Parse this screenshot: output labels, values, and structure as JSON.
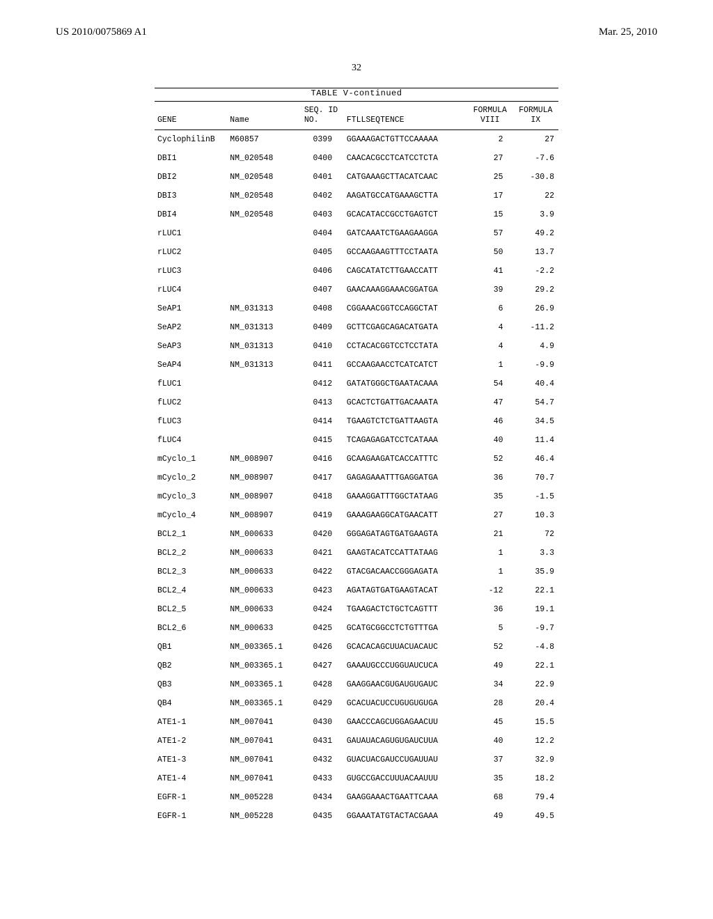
{
  "header": {
    "left": "US 2010/0075869 A1",
    "right": "Mar. 25, 2010"
  },
  "page_number": "32",
  "table": {
    "title": "TABLE V-continued",
    "columns": {
      "gene": "GENE",
      "name": "Name",
      "seqid": "SEQ. ID NO.",
      "seq": "FTLLSEQTENCE",
      "f8_line1": "FORMULA",
      "f8_line2": "VIII",
      "f9_line1": "FORMULA",
      "f9_line2": "IX"
    },
    "rows": [
      {
        "gene": "CyclophilinB",
        "name": "M60857",
        "seqid": "0399",
        "seq": "GGAAAGACTGTTCCAAAAA",
        "f8": "2",
        "f9": "27"
      },
      {
        "gene": "DBI1",
        "name": "NM_020548",
        "seqid": "0400",
        "seq": "CAACACGCCTCATCCTCTA",
        "f8": "27",
        "f9": "-7.6"
      },
      {
        "gene": "DBI2",
        "name": "NM_020548",
        "seqid": "0401",
        "seq": "CATGAAAGCTTACATCAAC",
        "f8": "25",
        "f9": "-30.8"
      },
      {
        "gene": "DBI3",
        "name": "NM_020548",
        "seqid": "0402",
        "seq": "AAGATGCCATGAAAGCTTA",
        "f8": "17",
        "f9": "22"
      },
      {
        "gene": "DBI4",
        "name": "NM_020548",
        "seqid": "0403",
        "seq": "GCACATACCGCCTGAGTCT",
        "f8": "15",
        "f9": "3.9"
      },
      {
        "gene": "rLUC1",
        "name": "",
        "seqid": "0404",
        "seq": "GATCAAATCTGAAGAAGGA",
        "f8": "57",
        "f9": "49.2"
      },
      {
        "gene": "rLUC2",
        "name": "",
        "seqid": "0405",
        "seq": "GCCAAGAAGTTTCCTAATA",
        "f8": "50",
        "f9": "13.7"
      },
      {
        "gene": "rLUC3",
        "name": "",
        "seqid": "0406",
        "seq": "CAGCATATCTTGAACCATT",
        "f8": "41",
        "f9": "-2.2"
      },
      {
        "gene": "rLUC4",
        "name": "",
        "seqid": "0407",
        "seq": "GAACAAAGGAAACGGATGA",
        "f8": "39",
        "f9": "29.2"
      },
      {
        "gene": "SeAP1",
        "name": "NM_031313",
        "seqid": "0408",
        "seq": "CGGAAACGGTCCAGGCTAT",
        "f8": "6",
        "f9": "26.9"
      },
      {
        "gene": "SeAP2",
        "name": "NM_031313",
        "seqid": "0409",
        "seq": "GCTTCGAGCAGACATGATA",
        "f8": "4",
        "f9": "-11.2"
      },
      {
        "gene": "SeAP3",
        "name": "NM_031313",
        "seqid": "0410",
        "seq": "CCTACACGGTCCTCCTATA",
        "f8": "4",
        "f9": "4.9"
      },
      {
        "gene": "SeAP4",
        "name": "NM_031313",
        "seqid": "0411",
        "seq": "GCCAAGAACCTCATCATCT",
        "f8": "1",
        "f9": "-9.9"
      },
      {
        "gene": "fLUC1",
        "name": "",
        "seqid": "0412",
        "seq": "GATATGGGCTGAATACAAA",
        "f8": "54",
        "f9": "40.4"
      },
      {
        "gene": "fLUC2",
        "name": "",
        "seqid": "0413",
        "seq": "GCACTCTGATTGACAAATA",
        "f8": "47",
        "f9": "54.7"
      },
      {
        "gene": "fLUC3",
        "name": "",
        "seqid": "0414",
        "seq": "TGAAGTCTCTGATTAAGTA",
        "f8": "46",
        "f9": "34.5"
      },
      {
        "gene": "fLUC4",
        "name": "",
        "seqid": "0415",
        "seq": "TCAGAGAGATCCTCATAAA",
        "f8": "40",
        "f9": "11.4"
      },
      {
        "gene": "mCyclo_1",
        "name": "NM_008907",
        "seqid": "0416",
        "seq": "GCAAGAAGATCACCATTTC",
        "f8": "52",
        "f9": "46.4"
      },
      {
        "gene": "mCyclo_2",
        "name": "NM_008907",
        "seqid": "0417",
        "seq": "GAGAGAAATTTGAGGATGA",
        "f8": "36",
        "f9": "70.7"
      },
      {
        "gene": "mCyclo_3",
        "name": "NM_008907",
        "seqid": "0418",
        "seq": "GAAAGGATTTGGCTATAAG",
        "f8": "35",
        "f9": "-1.5"
      },
      {
        "gene": "mCyclo_4",
        "name": "NM_008907",
        "seqid": "0419",
        "seq": "GAAAGAAGGCATGAACATT",
        "f8": "27",
        "f9": "10.3"
      },
      {
        "gene": "BCL2_1",
        "name": "NM_000633",
        "seqid": "0420",
        "seq": "GGGAGATAGTGATGAAGTA",
        "f8": "21",
        "f9": "72"
      },
      {
        "gene": "BCL2_2",
        "name": "NM_000633",
        "seqid": "0421",
        "seq": "GAAGTACATCCATTATAAG",
        "f8": "1",
        "f9": "3.3"
      },
      {
        "gene": "BCL2_3",
        "name": "NM_000633",
        "seqid": "0422",
        "seq": "GTACGACAACCGGGAGATA",
        "f8": "1",
        "f9": "35.9"
      },
      {
        "gene": "BCL2_4",
        "name": "NM_000633",
        "seqid": "0423",
        "seq": "AGATAGTGATGAAGTACAT",
        "f8": "-12",
        "f9": "22.1"
      },
      {
        "gene": "BCL2_5",
        "name": "NM_000633",
        "seqid": "0424",
        "seq": "TGAAGACTCTGCTCAGTTT",
        "f8": "36",
        "f9": "19.1"
      },
      {
        "gene": "BCL2_6",
        "name": "NM_000633",
        "seqid": "0425",
        "seq": "GCATGCGGCCTCTGTTTGA",
        "f8": "5",
        "f9": "-9.7"
      },
      {
        "gene": "QB1",
        "name": "NM_003365.1",
        "seqid": "0426",
        "seq": "GCACACAGCUUACUACAUC",
        "f8": "52",
        "f9": "-4.8"
      },
      {
        "gene": "QB2",
        "name": "NM_003365.1",
        "seqid": "0427",
        "seq": "GAAAUGCCCUGGUAUCUCA",
        "f8": "49",
        "f9": "22.1"
      },
      {
        "gene": "QB3",
        "name": "NM_003365.1",
        "seqid": "0428",
        "seq": "GAAGGAACGUGAUGUGAUC",
        "f8": "34",
        "f9": "22.9"
      },
      {
        "gene": "QB4",
        "name": "NM_003365.1",
        "seqid": "0429",
        "seq": "GCACUACUCCUGUGUGUGA",
        "f8": "28",
        "f9": "20.4"
      },
      {
        "gene": "ATE1-1",
        "name": "NM_007041",
        "seqid": "0430",
        "seq": "GAACCCAGCUGGAGAACUU",
        "f8": "45",
        "f9": "15.5"
      },
      {
        "gene": "ATE1-2",
        "name": "NM_007041",
        "seqid": "0431",
        "seq": "GAUAUACAGUGUGAUCUUA",
        "f8": "40",
        "f9": "12.2"
      },
      {
        "gene": "ATE1-3",
        "name": "NM_007041",
        "seqid": "0432",
        "seq": "GUACUACGAUCCUGAUUAU",
        "f8": "37",
        "f9": "32.9"
      },
      {
        "gene": "ATE1-4",
        "name": "NM_007041",
        "seqid": "0433",
        "seq": "GUGCCGACCUUUACAAUUU",
        "f8": "35",
        "f9": "18.2"
      },
      {
        "gene": "EGFR-1",
        "name": "NM_005228",
        "seqid": "0434",
        "seq": "GAAGGAAACTGAATTCAAA",
        "f8": "68",
        "f9": "79.4"
      },
      {
        "gene": "EGFR-1",
        "name": "NM_005228",
        "seqid": "0435",
        "seq": "GGAAATATGTACTACGAAA",
        "f8": "49",
        "f9": "49.5"
      }
    ]
  }
}
